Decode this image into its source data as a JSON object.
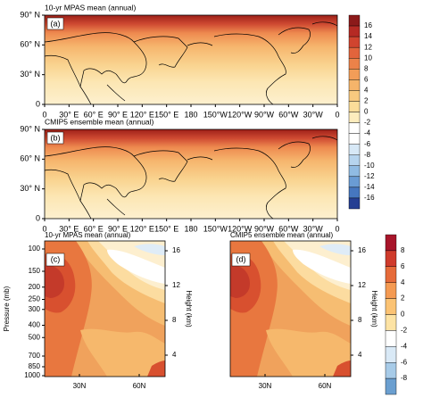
{
  "map_panels": [
    {
      "title": "10-yr MPAS mean (annual)",
      "label": "(a)"
    },
    {
      "title": "CMIP5 ensemble mean (annual)",
      "label": "(b)"
    }
  ],
  "map_axes": {
    "yticks": [
      "90° N",
      "60° N",
      "30° N",
      "0"
    ],
    "xticks": [
      "0",
      "30° E",
      "60° E",
      "90° E",
      "120° E",
      "150° E",
      "180",
      "150°W",
      "120°W",
      "90°W",
      "60°W",
      "30°W",
      "0"
    ]
  },
  "map_colorbar": {
    "ticks": [
      16,
      14,
      12,
      10,
      8,
      6,
      4,
      2,
      0,
      -2,
      -4,
      -6,
      -8,
      -10,
      -12,
      -14,
      -16
    ],
    "colors": [
      "#8c1a1a",
      "#b52a24",
      "#d0442f",
      "#e2643c",
      "#ec8249",
      "#f29d58",
      "#f5b46a",
      "#f8c97f",
      "#fbdc99",
      "#fdecbd",
      "#ffffff",
      "#ffffff",
      "#d7e8f6",
      "#b6d4ee",
      "#90bbe3",
      "#6a9cd4",
      "#4677bf",
      "#253f93"
    ]
  },
  "section_panels": [
    {
      "title": "10-yr MPAS mean (annual)",
      "label": "(c)"
    },
    {
      "title": "CMIP5 ensemble mean (annual)",
      "label": "(d)"
    }
  ],
  "section_axes": {
    "ylabel": "Pressure (mb)",
    "ylim": [
      1000,
      100
    ],
    "yticks": [
      100,
      150,
      200,
      250,
      300,
      400,
      500,
      700,
      850,
      1000
    ],
    "y2label": "Height (km)",
    "y2ticks": [
      16,
      12,
      8,
      4
    ],
    "xticks": [
      "30N",
      "60N"
    ]
  },
  "section_colorbar": {
    "ticks": [
      8,
      6,
      4,
      2,
      0,
      -2,
      -4,
      -6,
      -8
    ],
    "colors": [
      "#a8152a",
      "#cf3b2c",
      "#e66b3a",
      "#f49a52",
      "#fbc374",
      "#fde3a4",
      "#ffffff",
      "#d9e9f6",
      "#a7cbe8",
      "#6b9fd0"
    ]
  }
}
